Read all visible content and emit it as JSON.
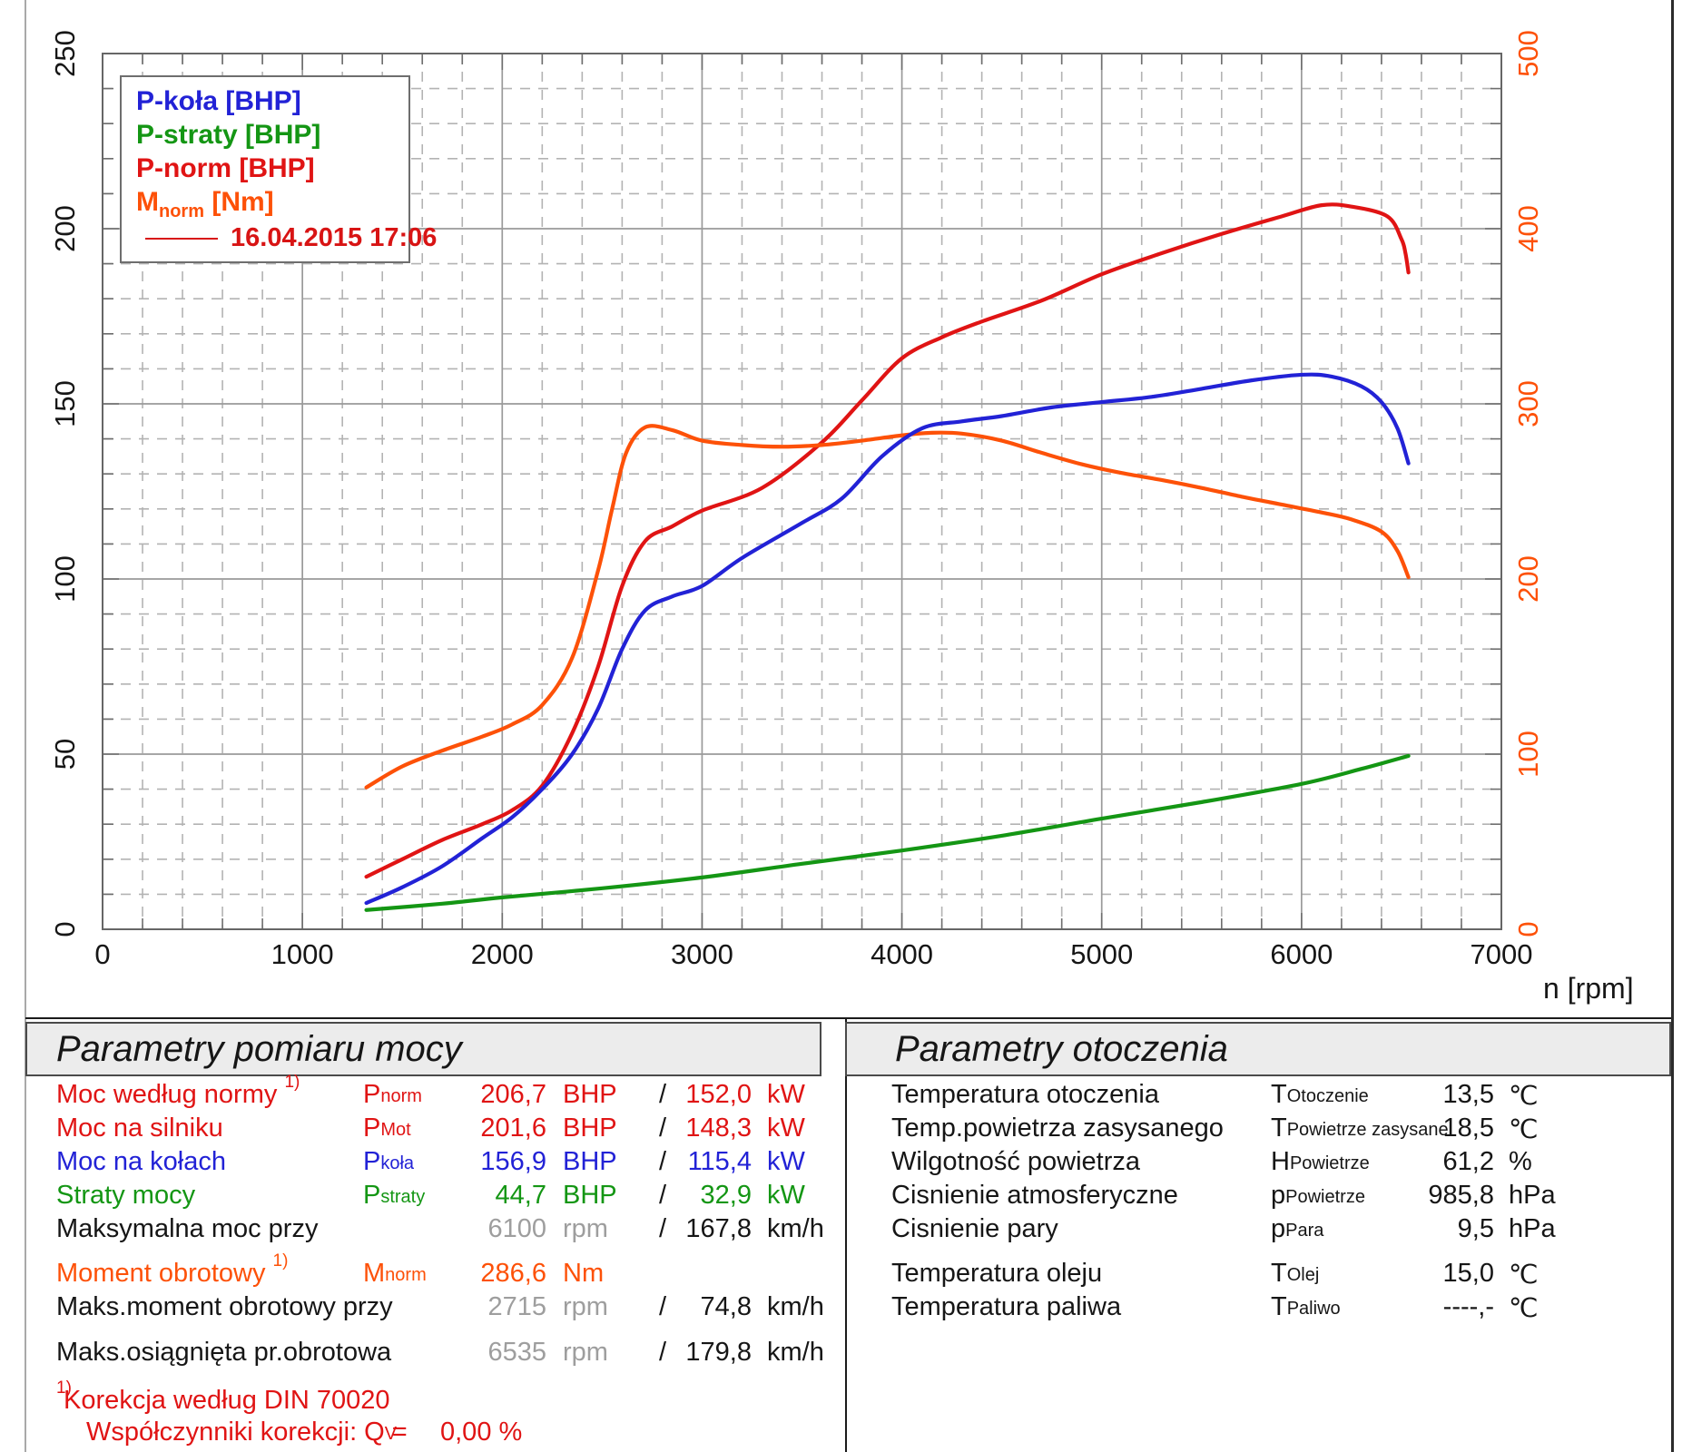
{
  "page": {
    "type": "dyno-measurement-report"
  },
  "chart_data": {
    "type": "line",
    "title": "",
    "xlabel": "n [rpm]",
    "x_axis": {
      "min": 0,
      "max": 7000,
      "major_step": 1000,
      "minor_step": 200,
      "tick_labels": [
        "0",
        "1000",
        "2000",
        "3000",
        "4000",
        "5000",
        "6000",
        "7000"
      ]
    },
    "y_axis_left": {
      "min": 0,
      "max": 250,
      "major_step": 50,
      "minor_step": 10,
      "tick_labels": [
        "0",
        "50",
        "100",
        "150",
        "200",
        "250"
      ],
      "color": "#161616"
    },
    "y_axis_right": {
      "min": 0,
      "max": 500,
      "major_step": 100,
      "minor_step": 20,
      "tick_labels": [
        "0",
        "100",
        "200",
        "300",
        "400",
        "500"
      ],
      "color": "#fd5108"
    },
    "grid": {
      "major_on": true,
      "minor_dashed_on": true
    },
    "legend_position": "top-left",
    "series": [
      {
        "name": "P-straty",
        "unit": "BHP",
        "axis": "left",
        "color": "#149614",
        "points": [
          [
            1320,
            5.5
          ],
          [
            1700,
            7.3
          ],
          [
            2000,
            9.1
          ],
          [
            2500,
            11.7
          ],
          [
            3000,
            14.8
          ],
          [
            3500,
            18.7
          ],
          [
            4000,
            22.5
          ],
          [
            4500,
            26.7
          ],
          [
            5000,
            31.6
          ],
          [
            5500,
            36.3
          ],
          [
            6000,
            41.5
          ],
          [
            6300,
            45.8
          ],
          [
            6535,
            49.5
          ]
        ]
      },
      {
        "name": "P-norm",
        "unit": "BHP",
        "axis": "left",
        "color": "#e01414",
        "points": [
          [
            1320,
            15
          ],
          [
            1500,
            20
          ],
          [
            1700,
            25.5
          ],
          [
            1900,
            30
          ],
          [
            2050,
            34
          ],
          [
            2200,
            41
          ],
          [
            2350,
            56
          ],
          [
            2480,
            75
          ],
          [
            2600,
            98
          ],
          [
            2715,
            110.8
          ],
          [
            2850,
            115
          ],
          [
            3000,
            119.5
          ],
          [
            3300,
            126
          ],
          [
            3600,
            139
          ],
          [
            3800,
            151
          ],
          [
            4000,
            163
          ],
          [
            4200,
            169
          ],
          [
            4400,
            173.5
          ],
          [
            4700,
            179.5
          ],
          [
            5000,
            187
          ],
          [
            5300,
            193
          ],
          [
            5600,
            198.5
          ],
          [
            5900,
            203.5
          ],
          [
            6100,
            206.7
          ],
          [
            6250,
            206.3
          ],
          [
            6430,
            203.5
          ],
          [
            6500,
            197
          ],
          [
            6520,
            193
          ],
          [
            6535,
            187.5
          ]
        ]
      },
      {
        "name": "M-norm",
        "unit": "Nm",
        "axis": "right",
        "color": "#fd5108",
        "points": [
          [
            1320,
            81
          ],
          [
            1500,
            93
          ],
          [
            1700,
            102
          ],
          [
            1900,
            110
          ],
          [
            2050,
            117
          ],
          [
            2200,
            128
          ],
          [
            2350,
            155
          ],
          [
            2480,
            205
          ],
          [
            2550,
            240
          ],
          [
            2620,
            272
          ],
          [
            2715,
            286.6
          ],
          [
            2850,
            285
          ],
          [
            3000,
            279
          ],
          [
            3200,
            276.5
          ],
          [
            3400,
            275.5
          ],
          [
            3600,
            276.5
          ],
          [
            3800,
            279
          ],
          [
            4000,
            282
          ],
          [
            4150,
            283.5
          ],
          [
            4300,
            283
          ],
          [
            4500,
            279
          ],
          [
            4700,
            272
          ],
          [
            4900,
            265.5
          ],
          [
            5100,
            260.5
          ],
          [
            5300,
            256.5
          ],
          [
            5500,
            252
          ],
          [
            5700,
            247
          ],
          [
            5900,
            242.5
          ],
          [
            6100,
            238
          ],
          [
            6250,
            234
          ],
          [
            6400,
            227
          ],
          [
            6480,
            216
          ],
          [
            6535,
            201
          ]
        ]
      },
      {
        "name": "P-koła",
        "unit": "BHP",
        "axis": "left",
        "color": "#2222d6",
        "points": [
          [
            1320,
            7.5
          ],
          [
            1500,
            12
          ],
          [
            1700,
            18
          ],
          [
            1900,
            26
          ],
          [
            2050,
            32
          ],
          [
            2200,
            40
          ],
          [
            2350,
            50
          ],
          [
            2480,
            63
          ],
          [
            2600,
            80
          ],
          [
            2715,
            91
          ],
          [
            2850,
            95
          ],
          [
            3000,
            98
          ],
          [
            3200,
            106
          ],
          [
            3500,
            116
          ],
          [
            3700,
            123
          ],
          [
            3900,
            135
          ],
          [
            4100,
            143
          ],
          [
            4300,
            145
          ],
          [
            4500,
            146.5
          ],
          [
            4750,
            149
          ],
          [
            5000,
            150.5
          ],
          [
            5250,
            152
          ],
          [
            5500,
            154.3
          ],
          [
            5750,
            156.7
          ],
          [
            6000,
            158.3
          ],
          [
            6150,
            157.8
          ],
          [
            6300,
            155
          ],
          [
            6400,
            150.5
          ],
          [
            6480,
            143
          ],
          [
            6535,
            133
          ]
        ]
      }
    ],
    "legend": {
      "items": [
        {
          "pre": "P-koła [BHP]",
          "sub": "",
          "post": "",
          "color": "#2222d6"
        },
        {
          "pre": "P-straty [BHP]",
          "sub": "",
          "post": "",
          "color": "#149614"
        },
        {
          "pre": "P-norm [BHP]",
          "sub": "",
          "post": "",
          "color": "#e01414"
        },
        {
          "pre": "M",
          "sub": "norm",
          "post": " [Nm]",
          "color": "#fd5108"
        }
      ],
      "date": "16.04.2015 17:06",
      "date_color": "#d81414"
    }
  },
  "left_panel": {
    "title": "Parametry pomiaru mocy",
    "rows": [
      {
        "label": "Moc według normy ",
        "label_sup": "1)",
        "sym": "P",
        "sym_sub": "norm",
        "v1": "206,7",
        "u1": "BHP",
        "slash": "/",
        "v2": "152,0",
        "u2": "kW",
        "color": "red",
        "v1_gray": false
      },
      {
        "label": "Moc na silniku",
        "label_sup": "",
        "sym": "P",
        "sym_sub": "Mot",
        "v1": "201,6",
        "u1": "BHP",
        "slash": "/",
        "v2": "148,3",
        "u2": "kW",
        "color": "red",
        "v1_gray": false
      },
      {
        "label": "Moc na kołach",
        "label_sup": "",
        "sym": "P",
        "sym_sub": "koła",
        "v1": "156,9",
        "u1": "BHP",
        "slash": "/",
        "v2": "115,4",
        "u2": "kW",
        "color": "blue",
        "v1_gray": false
      },
      {
        "label": "Straty mocy",
        "label_sup": "",
        "sym": "P",
        "sym_sub": "straty",
        "v1": "44,7",
        "u1": "BHP",
        "slash": "/",
        "v2": "32,9",
        "u2": "kW",
        "color": "green",
        "v1_gray": false
      },
      {
        "label": "Maksymalna moc przy",
        "label_sup": "",
        "sym": "",
        "sym_sub": "",
        "v1": "6100",
        "u1": "rpm",
        "slash": "/",
        "v2": "167,8",
        "u2": "km/h",
        "color": "black",
        "v1_gray": true
      },
      {
        "label": "Moment obrotowy ",
        "label_sup": "1)",
        "sym": "M",
        "sym_sub": "norm",
        "v1": "286,6",
        "u1": "Nm",
        "slash": "",
        "v2": "",
        "u2": "",
        "color": "orange",
        "v1_gray": false
      },
      {
        "label": "Maks.moment obrotowy przy",
        "label_sup": "",
        "sym": "",
        "sym_sub": "",
        "v1": "2715",
        "u1": "rpm",
        "slash": "/",
        "v2": "74,8",
        "u2": "km/h",
        "color": "black",
        "v1_gray": true
      },
      {
        "label": "Maks.osiągnięta pr.obrotowa",
        "label_sup": "",
        "sym": "",
        "sym_sub": "",
        "v1": "6535",
        "u1": "rpm",
        "slash": "/",
        "v2": "179,8",
        "u2": "km/h",
        "color": "black",
        "v1_gray": true
      }
    ],
    "footnote1_sup": "1)",
    "footnote1_text": " Korekcja według DIN 70020",
    "footnote2_pre": "Współczynniki korekcji: Q",
    "footnote2_sub": "V",
    "footnote2_eq": " =",
    "footnote2_value": "0,00 %"
  },
  "right_panel": {
    "title": "Parametry otoczenia",
    "rows": [
      {
        "label": "Temperatura otoczenia",
        "sym": "T",
        "sym_sub": "Otoczenie",
        "v": "13,5",
        "u": "℃"
      },
      {
        "label": "Temp.powietrza zasysanego",
        "sym": "T",
        "sym_sub": "Powietrze zasysane",
        "v": "18,5",
        "u": "℃"
      },
      {
        "label": "Wilgotność powietrza",
        "sym": "H",
        "sym_sub": "Powietrze",
        "v": "61,2",
        "u": "%"
      },
      {
        "label": "Cisnienie atmosferyczne",
        "sym": "p",
        "sym_sub": "Powietrze",
        "v": "985,8",
        "u": "hPa"
      },
      {
        "label": "Cisnienie pary",
        "sym": "p",
        "sym_sub": "Para",
        "v": "9,5",
        "u": "hPa"
      },
      {
        "label": "Temperatura oleju",
        "sym": "T",
        "sym_sub": "Olej",
        "v": "15,0",
        "u": "℃"
      },
      {
        "label": "Temperatura paliwa",
        "sym": "T",
        "sym_sub": "Paliwo",
        "v": "----,-",
        "u": "℃"
      }
    ]
  }
}
